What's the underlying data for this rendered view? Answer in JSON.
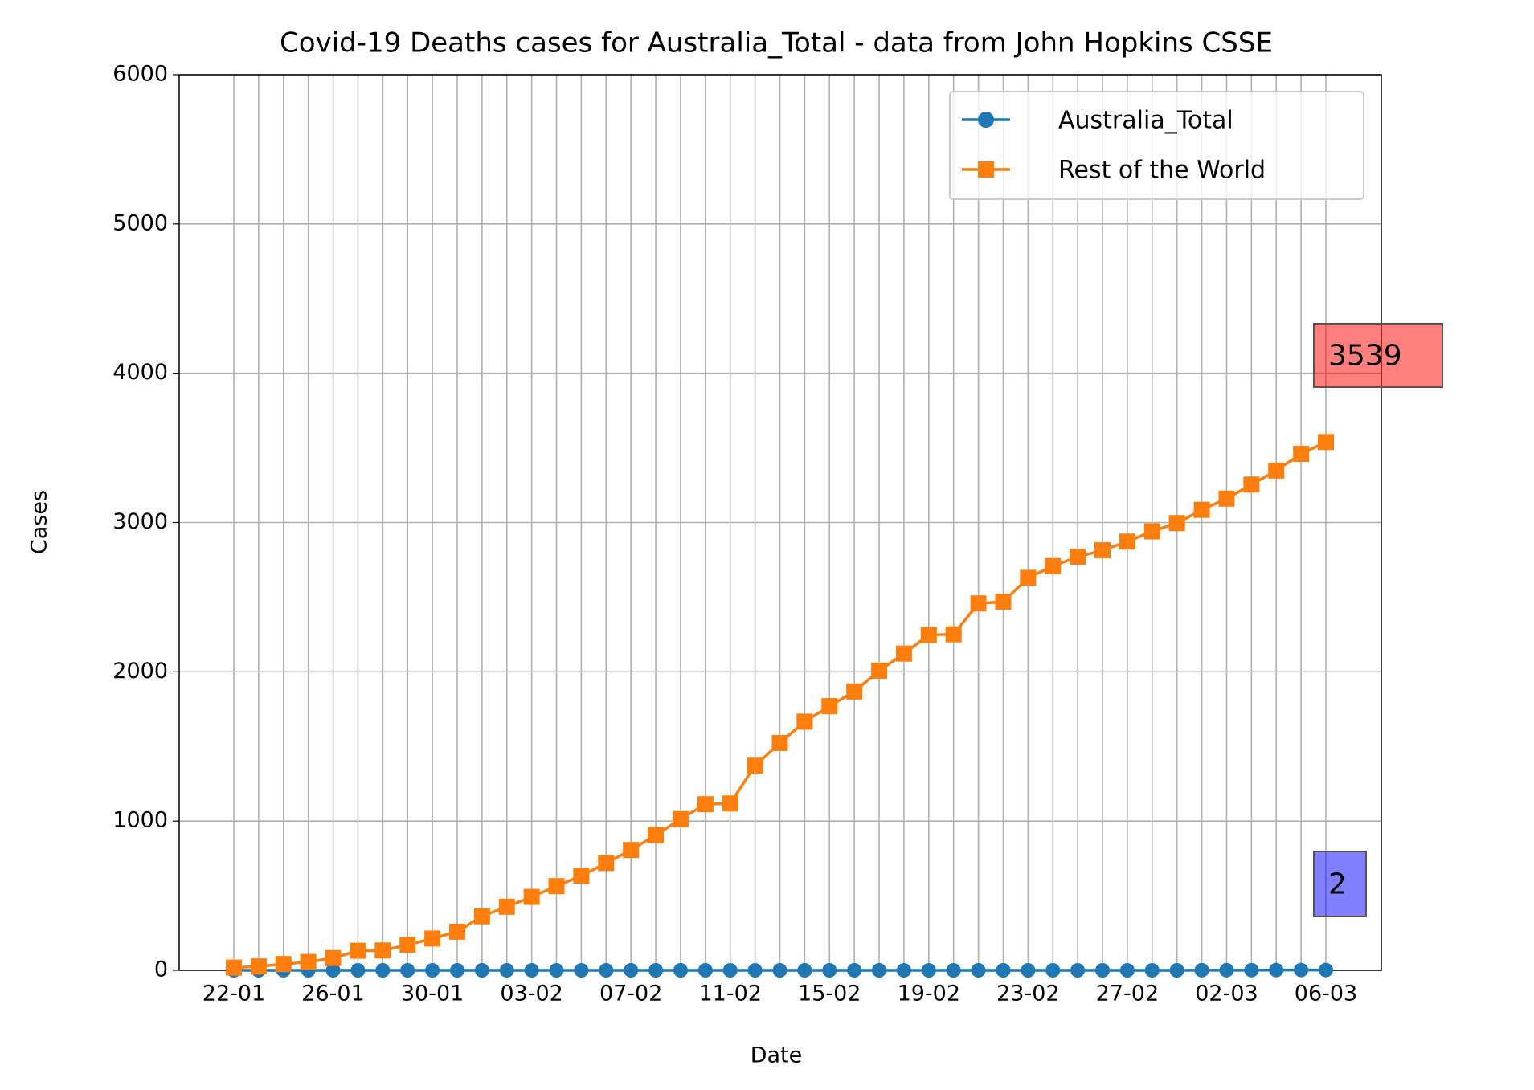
{
  "chart_data": {
    "type": "line",
    "title": "Covid-19 Deaths cases for Australia_Total - data from John Hopkins CSSE",
    "x_label": "Date",
    "y_label": "Cases",
    "categories": [
      "22-01",
      null,
      null,
      null,
      "26-01",
      null,
      null,
      null,
      "30-01",
      null,
      null,
      null,
      "03-02",
      null,
      null,
      null,
      "07-02",
      null,
      null,
      null,
      "11-02",
      null,
      null,
      null,
      "15-02",
      null,
      null,
      null,
      "19-02",
      null,
      null,
      null,
      "23-02",
      null,
      null,
      null,
      "27-02",
      null,
      null,
      null,
      "02-03",
      null,
      null,
      null,
      "06-03"
    ],
    "series": [
      {
        "name": "Australia_Total",
        "color": "#1f77b4",
        "marker": "circle",
        "values": [
          0,
          0,
          0,
          0,
          0,
          0,
          0,
          0,
          0,
          0,
          0,
          0,
          0,
          0,
          0,
          0,
          0,
          0,
          0,
          0,
          0,
          0,
          0,
          0,
          0,
          0,
          0,
          0,
          0,
          0,
          0,
          0,
          0,
          0,
          0,
          0,
          0,
          0,
          0,
          1,
          1,
          1,
          2,
          2,
          2
        ]
      },
      {
        "name": "Rest of the World",
        "color": "#ff7f0e",
        "marker": "square",
        "values": [
          18,
          26,
          42,
          56,
          82,
          131,
          133,
          171,
          213,
          259,
          362,
          426,
          492,
          564,
          634,
          719,
          806,
          906,
          1013,
          1113,
          1118,
          1371,
          1523,
          1666,
          1770,
          1868,
          2007,
          2122,
          2247,
          2251,
          2458,
          2469,
          2629,
          2708,
          2770,
          2814,
          2872,
          2941,
          2996,
          3085,
          3160,
          3254,
          3348,
          3460,
          3539
        ]
      }
    ],
    "annotations": [
      "3539",
      "2"
    ],
    "ylim": [
      0,
      6000
    ],
    "yticks": [
      0,
      1000,
      2000,
      3000,
      4000,
      5000,
      6000
    ],
    "grid": true,
    "legend": "upper right"
  }
}
